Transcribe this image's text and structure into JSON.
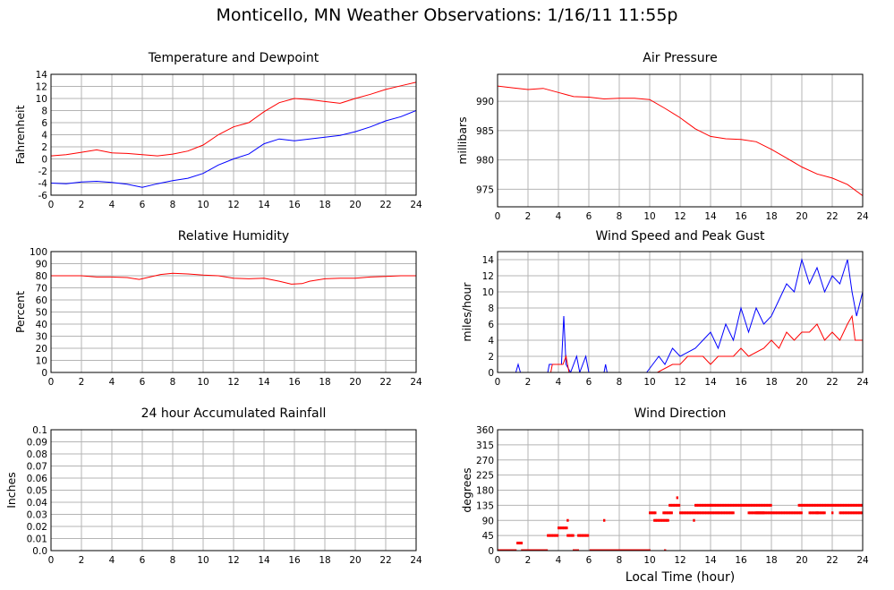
{
  "page": {
    "title": "Monticello, MN Weather Observations: 1/16/11 11:55p",
    "xlabel": "Local Time (hour)"
  },
  "chart_data": [
    {
      "id": "temp",
      "type": "line",
      "title": "Temperature and Dewpoint",
      "xlabel": "",
      "ylabel": "Fahrenheit",
      "xlim": [
        0,
        24
      ],
      "ylim": [
        -6,
        14
      ],
      "xticks": [
        0,
        2,
        4,
        6,
        8,
        10,
        12,
        14,
        16,
        18,
        20,
        22,
        24
      ],
      "yticks": [
        -6,
        -4,
        -2,
        0,
        2,
        4,
        6,
        8,
        10,
        12,
        14
      ],
      "grid": true,
      "series": [
        {
          "color": "#ff0000",
          "points": [
            [
              0,
              0.5
            ],
            [
              1,
              0.7
            ],
            [
              2,
              1.1
            ],
            [
              3,
              1.5
            ],
            [
              4,
              1.0
            ],
            [
              5,
              0.9
            ],
            [
              6,
              0.7
            ],
            [
              7,
              0.5
            ],
            [
              8,
              0.8
            ],
            [
              9,
              1.3
            ],
            [
              10,
              2.3
            ],
            [
              11,
              4.0
            ],
            [
              12,
              5.3
            ],
            [
              13,
              6.0
            ],
            [
              14,
              7.8
            ],
            [
              15,
              9.3
            ],
            [
              16,
              10.0
            ],
            [
              17,
              9.8
            ],
            [
              18,
              9.5
            ],
            [
              19,
              9.2
            ],
            [
              20,
              10.0
            ],
            [
              21,
              10.7
            ],
            [
              22,
              11.5
            ],
            [
              23,
              12.1
            ],
            [
              24,
              12.7
            ]
          ]
        },
        {
          "color": "#0000ff",
          "points": [
            [
              0,
              -4.0
            ],
            [
              1,
              -4.1
            ],
            [
              2,
              -3.8
            ],
            [
              3,
              -3.7
            ],
            [
              4,
              -3.9
            ],
            [
              5,
              -4.2
            ],
            [
              6,
              -4.7
            ],
            [
              7,
              -4.1
            ],
            [
              8,
              -3.6
            ],
            [
              9,
              -3.2
            ],
            [
              10,
              -2.4
            ],
            [
              11,
              -1.0
            ],
            [
              12,
              0.0
            ],
            [
              13,
              0.8
            ],
            [
              14,
              2.5
            ],
            [
              15,
              3.3
            ],
            [
              16,
              3.0
            ],
            [
              17,
              3.3
            ],
            [
              18,
              3.6
            ],
            [
              19,
              3.9
            ],
            [
              20,
              4.5
            ],
            [
              21,
              5.3
            ],
            [
              22,
              6.3
            ],
            [
              23,
              7.0
            ],
            [
              24,
              8.0
            ]
          ]
        }
      ]
    },
    {
      "id": "pressure",
      "type": "line",
      "title": "Air Pressure",
      "xlabel": "",
      "ylabel": "millibars",
      "xlim": [
        0,
        24
      ],
      "ylim": [
        972,
        994.6
      ],
      "xticks": [
        0,
        2,
        4,
        6,
        8,
        10,
        12,
        14,
        16,
        18,
        20,
        22,
        24
      ],
      "yticks": [
        975,
        980,
        985,
        990
      ],
      "grid": true,
      "series": [
        {
          "color": "#ff0000",
          "points": [
            [
              0,
              992.6
            ],
            [
              1,
              992.3
            ],
            [
              2,
              992.0
            ],
            [
              3,
              992.2
            ],
            [
              4,
              991.5
            ],
            [
              5,
              990.8
            ],
            [
              6,
              990.7
            ],
            [
              7,
              990.4
            ],
            [
              8,
              990.5
            ],
            [
              9,
              990.5
            ],
            [
              10,
              990.3
            ],
            [
              11,
              988.8
            ],
            [
              12,
              987.2
            ],
            [
              13,
              985.3
            ],
            [
              14,
              984.0
            ],
            [
              15,
              983.6
            ],
            [
              16,
              983.5
            ],
            [
              17,
              983.1
            ],
            [
              18,
              981.8
            ],
            [
              19,
              980.3
            ],
            [
              20,
              978.8
            ],
            [
              21,
              977.6
            ],
            [
              22,
              976.9
            ],
            [
              23,
              975.8
            ],
            [
              24,
              973.9
            ]
          ]
        }
      ]
    },
    {
      "id": "humidity",
      "type": "line",
      "title": "Relative Humidity",
      "xlabel": "",
      "ylabel": "Percent",
      "xlim": [
        0,
        24
      ],
      "ylim": [
        0,
        100
      ],
      "xticks": [
        0,
        2,
        4,
        6,
        8,
        10,
        12,
        14,
        16,
        18,
        20,
        22,
        24
      ],
      "yticks": [
        0,
        10,
        20,
        30,
        40,
        50,
        60,
        70,
        80,
        90,
        100
      ],
      "grid": true,
      "series": [
        {
          "color": "#ff0000",
          "points": [
            [
              0,
              80
            ],
            [
              2,
              80
            ],
            [
              3,
              79
            ],
            [
              4,
              79
            ],
            [
              5,
              78.5
            ],
            [
              5.8,
              77
            ],
            [
              6.5,
              79
            ],
            [
              7.2,
              81
            ],
            [
              8,
              82
            ],
            [
              9,
              81.5
            ],
            [
              10,
              80.5
            ],
            [
              11,
              80
            ],
            [
              12,
              78
            ],
            [
              13,
              77.5
            ],
            [
              14,
              78
            ],
            [
              15,
              75.5
            ],
            [
              15.8,
              73
            ],
            [
              16.5,
              73.5
            ],
            [
              17,
              75.5
            ],
            [
              18,
              77.5
            ],
            [
              19,
              78
            ],
            [
              20,
              78
            ],
            [
              21,
              79
            ],
            [
              22,
              79.5
            ],
            [
              23,
              80
            ],
            [
              24,
              80
            ]
          ]
        }
      ]
    },
    {
      "id": "wind",
      "type": "line",
      "title": "Wind Speed and Peak Gust",
      "xlabel": "",
      "ylabel": "miles/hour",
      "xlim": [
        0,
        24
      ],
      "ylim": [
        0,
        15
      ],
      "xticks": [
        0,
        2,
        4,
        6,
        8,
        10,
        12,
        14,
        16,
        18,
        20,
        22,
        24
      ],
      "yticks": [
        0,
        2,
        4,
        6,
        8,
        10,
        12,
        14
      ],
      "grid": true,
      "series": [
        {
          "color": "#0000ff",
          "points": [
            [
              0,
              0
            ],
            [
              1.2,
              0
            ],
            [
              1.35,
              1
            ],
            [
              1.5,
              0
            ],
            [
              3.3,
              0
            ],
            [
              3.4,
              1
            ],
            [
              4.2,
              1
            ],
            [
              4.35,
              7
            ],
            [
              4.5,
              1
            ],
            [
              4.8,
              0
            ],
            [
              5.2,
              2
            ],
            [
              5.4,
              0
            ],
            [
              5.8,
              2
            ],
            [
              6,
              0
            ],
            [
              7,
              0
            ],
            [
              7.1,
              1
            ],
            [
              7.2,
              0
            ],
            [
              9.8,
              0
            ],
            [
              10.2,
              1
            ],
            [
              10.6,
              2
            ],
            [
              11,
              1
            ],
            [
              11.5,
              3
            ],
            [
              12,
              2
            ],
            [
              13,
              3
            ],
            [
              13.5,
              4
            ],
            [
              14,
              5
            ],
            [
              14.5,
              3
            ],
            [
              15,
              6
            ],
            [
              15.5,
              4
            ],
            [
              16,
              8
            ],
            [
              16.5,
              5
            ],
            [
              17,
              8
            ],
            [
              17.5,
              6
            ],
            [
              18,
              7
            ],
            [
              18.5,
              9
            ],
            [
              19,
              11
            ],
            [
              19.5,
              10
            ],
            [
              20,
              14
            ],
            [
              20.5,
              11
            ],
            [
              21,
              13
            ],
            [
              21.5,
              10
            ],
            [
              22,
              12
            ],
            [
              22.5,
              11
            ],
            [
              23,
              14
            ],
            [
              23.3,
              10
            ],
            [
              23.6,
              7
            ],
            [
              24,
              10
            ]
          ]
        },
        {
          "color": "#ff0000",
          "points": [
            [
              0,
              0
            ],
            [
              3.5,
              0
            ],
            [
              3.6,
              1
            ],
            [
              4.3,
              1
            ],
            [
              4.5,
              2
            ],
            [
              4.7,
              0
            ],
            [
              10.5,
              0
            ],
            [
              11.5,
              1
            ],
            [
              12,
              1
            ],
            [
              12.5,
              2
            ],
            [
              13.5,
              2
            ],
            [
              14,
              1
            ],
            [
              14.5,
              2
            ],
            [
              15.5,
              2
            ],
            [
              16,
              3
            ],
            [
              16.5,
              2
            ],
            [
              17.5,
              3
            ],
            [
              18,
              4
            ],
            [
              18.5,
              3
            ],
            [
              19,
              5
            ],
            [
              19.5,
              4
            ],
            [
              20,
              5
            ],
            [
              20.5,
              5
            ],
            [
              21,
              6
            ],
            [
              21.5,
              4
            ],
            [
              22,
              5
            ],
            [
              22.5,
              4
            ],
            [
              23,
              6
            ],
            [
              23.3,
              7
            ],
            [
              23.5,
              4
            ],
            [
              24,
              4
            ]
          ]
        }
      ]
    },
    {
      "id": "rain",
      "type": "line",
      "title": "24 hour Accumulated Rainfall",
      "xlabel": "",
      "ylabel": "Inches",
      "xlim": [
        0,
        24
      ],
      "ylim": [
        0,
        0.1
      ],
      "xticks": [
        0,
        2,
        4,
        6,
        8,
        10,
        12,
        14,
        16,
        18,
        20,
        22,
        24
      ],
      "yticks": [
        0,
        0.01,
        0.02,
        0.03,
        0.04,
        0.05,
        0.06,
        0.07,
        0.08,
        0.09,
        0.1
      ],
      "ytick_labels": [
        "0.0",
        "0.01",
        "0.02",
        "0.03",
        "0.04",
        "0.05",
        "0.06",
        "0.07",
        "0.08",
        "0.09",
        "0.1"
      ],
      "grid": true,
      "series": [
        {
          "color": "#ff0000",
          "points": [
            [
              0,
              0
            ],
            [
              24,
              0
            ]
          ]
        }
      ]
    },
    {
      "id": "direction",
      "type": "scatter",
      "title": "Wind Direction",
      "xlabel": "Local Time (hour)",
      "ylabel": "degrees",
      "xlim": [
        0,
        24
      ],
      "ylim": [
        0,
        360
      ],
      "xticks": [
        0,
        2,
        4,
        6,
        8,
        10,
        12,
        14,
        16,
        18,
        20,
        22,
        24
      ],
      "yticks": [
        0,
        45,
        90,
        135,
        180,
        225,
        270,
        315,
        360
      ],
      "grid": true,
      "series": [
        {
          "color": "#ff0000",
          "segments": [
            [
              0,
              1.2,
              0
            ],
            [
              1.3,
              1.6,
              22.5
            ],
            [
              1.6,
              3.3,
              0
            ],
            [
              3.3,
              4.0,
              45
            ],
            [
              4.0,
              4.6,
              67.5
            ],
            [
              4.6,
              5.0,
              45
            ],
            [
              5.0,
              5.3,
              0
            ],
            [
              5.3,
              6.0,
              45
            ],
            [
              6.1,
              10.0,
              0
            ],
            [
              10.0,
              10.4,
              112.5
            ],
            [
              10.3,
              11.2,
              90
            ],
            [
              10.9,
              11.5,
              112.5
            ],
            [
              11.3,
              12.0,
              135
            ],
            [
              12.0,
              14.5,
              112.5
            ],
            [
              13.0,
              14.0,
              135
            ],
            [
              14.0,
              18.0,
              135
            ],
            [
              14.5,
              15.5,
              112.5
            ],
            [
              16.5,
              17.5,
              112.5
            ],
            [
              17.0,
              20.0,
              112.5
            ],
            [
              19.8,
              24.0,
              135
            ],
            [
              20.5,
              21.5,
              112.5
            ],
            [
              22.5,
              24.0,
              112.5
            ]
          ],
          "points": [
            [
              4.6,
              90
            ],
            [
              7.0,
              90
            ],
            [
              11.8,
              157.5
            ],
            [
              12.9,
              90
            ],
            [
              11.0,
              0
            ],
            [
              22.0,
              112.5
            ],
            [
              21.0,
              112.5
            ]
          ]
        }
      ]
    }
  ]
}
